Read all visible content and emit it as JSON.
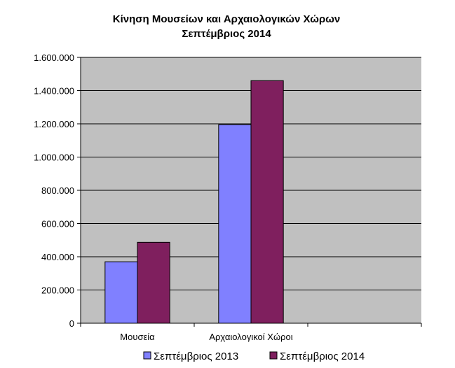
{
  "chart_data": {
    "type": "bar",
    "title": "Κίνηση Μουσείων και Αρχαιολογικών Χώρων",
    "subtitle": "Σεπτέμβριος 2014",
    "categories": [
      "Μουσεία",
      "Αρχαιολογικοί Χώροι",
      ""
    ],
    "series": [
      {
        "name": "Σεπτέμβριος 2013",
        "color": "#8080ff",
        "values": [
          370000,
          1195000,
          null
        ]
      },
      {
        "name": "Σεπτέμβριος 2014",
        "color": "#7f1f5e",
        "values": [
          487000,
          1460000,
          null
        ]
      }
    ],
    "ylim": [
      0,
      1600000
    ],
    "yticks": [
      "0",
      "200.000",
      "400.000",
      "600.000",
      "800.000",
      "1.000.000",
      "1.200.000",
      "1.400.000",
      "1.600.000"
    ],
    "plot_background": "#c0c0c0",
    "grid": true,
    "legend_position": "bottom"
  }
}
